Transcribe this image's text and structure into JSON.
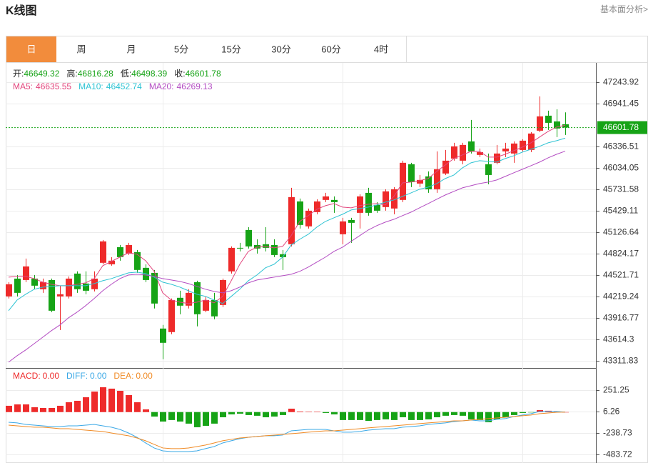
{
  "header": {
    "title": "K线图",
    "link": "基本面分析>"
  },
  "tabs": [
    "日",
    "周",
    "月",
    "5分",
    "15分",
    "30分",
    "60分",
    "4时"
  ],
  "active_tab": 0,
  "chart_data": [
    {
      "type": "candlestick",
      "ohlc_labels": {
        "open": "开:",
        "high": "高:",
        "low": "低:",
        "close": "收:"
      },
      "up_color": "#ee2a2a",
      "down_color": "#16a316",
      "open": [
        44220,
        44471,
        44451,
        44471,
        44321,
        44451,
        44220,
        44220,
        44542,
        44401,
        44321,
        44694,
        44673,
        44915,
        44825,
        44845,
        44623,
        44552,
        43766,
        43716,
        44200,
        44089,
        44421,
        44018,
        44169,
        44099,
        44573,
        44905,
        45157,
        44945,
        44956,
        44945,
        44815,
        44956,
        45560,
        45208,
        45409,
        45581,
        45581,
        45097,
        45298,
        45399,
        45681,
        45510,
        45480,
        45460,
        45581,
        46085,
        45812,
        45913,
        45732,
        45954,
        46165,
        46135,
        46407,
        46216,
        46085,
        46105,
        46266,
        46236,
        46286,
        46286,
        46558,
        46770,
        46689,
        46649.32
      ],
      "high": [
        44421,
        44522,
        44754,
        44522,
        44471,
        44471,
        44371,
        44502,
        44573,
        44573,
        44573,
        45016,
        44774,
        44945,
        44976,
        44875,
        44673,
        44593,
        43817,
        44190,
        44300,
        44321,
        44441,
        44220,
        44270,
        44471,
        44925,
        44976,
        45198,
        45026,
        45198,
        45026,
        44875,
        45752,
        45601,
        45460,
        45591,
        45681,
        45631,
        45329,
        45329,
        45661,
        45752,
        45550,
        45732,
        45762,
        46135,
        46105,
        45933,
        45984,
        46266,
        46286,
        46387,
        46387,
        46710,
        46306,
        46236,
        46357,
        46387,
        46407,
        46437,
        46538,
        47042,
        46841,
        46861,
        46816.28
      ],
      "low": [
        44190,
        44220,
        44421,
        44321,
        44270,
        43998,
        43746,
        44190,
        44270,
        44250,
        44290,
        44673,
        44653,
        44724,
        44804,
        44552,
        44421,
        44049,
        43333,
        43686,
        43968,
        44049,
        43797,
        43998,
        43897,
        44069,
        44542,
        44855,
        44895,
        44825,
        44855,
        44774,
        44593,
        44925,
        45177,
        45177,
        45379,
        45550,
        45399,
        44956,
        44976,
        45177,
        45359,
        45399,
        45429,
        45379,
        45550,
        45762,
        45762,
        45681,
        45681,
        45933,
        46135,
        46085,
        46236,
        46185,
        45802,
        46085,
        46185,
        46105,
        46266,
        46256,
        46538,
        46568,
        46468,
        46498.39
      ],
      "close": [
        44391,
        44270,
        44643,
        44371,
        44421,
        44018,
        44250,
        44471,
        44321,
        44300,
        44471,
        44996,
        44724,
        44774,
        44945,
        44593,
        44451,
        44119,
        43565,
        44169,
        44089,
        44270,
        43968,
        44169,
        43938,
        44451,
        44905,
        44895,
        44925,
        44895,
        44905,
        44804,
        44774,
        45621,
        45228,
        45429,
        45560,
        45631,
        45550,
        45278,
        45258,
        45631,
        45399,
        45429,
        45702,
        45732,
        46105,
        45833,
        45863,
        45732,
        46014,
        46135,
        46337,
        46357,
        46266,
        46256,
        45933,
        46236,
        46306,
        46377,
        46417,
        46518,
        46760,
        46669,
        46589,
        46601.78
      ],
      "series": [
        {
          "name": "MA5:",
          "color": "#e2457c",
          "values": [
            44492,
            44502,
            44502,
            44471,
            44421,
            44391,
            44371,
            44371,
            44391,
            44411,
            44471,
            44653,
            44714,
            44774,
            44835,
            44815,
            44724,
            44573,
            44270,
            44169,
            44139,
            44119,
            44139,
            44169,
            44129,
            44220,
            44441,
            44673,
            44855,
            44915,
            44925,
            44905,
            44925,
            45077,
            45278,
            45359,
            45450,
            45500,
            45530,
            45480,
            45470,
            45500,
            45520,
            45530,
            45510,
            45631,
            45823,
            45833,
            45853,
            45883,
            45984,
            46075,
            46165,
            46216,
            46266,
            46266,
            46185,
            46185,
            46226,
            46276,
            46326,
            46387,
            46468,
            46548,
            46609,
            46635.55
          ]
        },
        {
          "name": "MA10:",
          "color": "#2ec3d3",
          "values": [
            44018,
            44169,
            44250,
            44321,
            44351,
            44361,
            44371,
            44371,
            44371,
            44371,
            44401,
            44441,
            44471,
            44512,
            44552,
            44562,
            44542,
            44492,
            44421,
            44391,
            44351,
            44300,
            44250,
            44220,
            44169,
            44119,
            44220,
            44321,
            44441,
            44522,
            44623,
            44673,
            44774,
            44945,
            45026,
            45097,
            45198,
            45278,
            45329,
            45379,
            45439,
            45460,
            45480,
            45510,
            45550,
            45581,
            45631,
            45681,
            45732,
            45762,
            45812,
            45883,
            45933,
            46034,
            46105,
            46135,
            46125,
            46115,
            46165,
            46205,
            46256,
            46296,
            46337,
            46387,
            46417,
            46452.74
          ]
        },
        {
          "name": "MA20:",
          "color": "#b34cc2",
          "values": [
            43292,
            43383,
            43464,
            43554,
            43645,
            43736,
            43817,
            43918,
            43998,
            44089,
            44190,
            44300,
            44391,
            44471,
            44522,
            44532,
            44522,
            44502,
            44471,
            44451,
            44431,
            44401,
            44361,
            44321,
            44290,
            44270,
            44300,
            44351,
            44411,
            44451,
            44471,
            44492,
            44512,
            44532,
            44573,
            44633,
            44704,
            44774,
            44855,
            44915,
            44996,
            45077,
            45157,
            45218,
            45268,
            45308,
            45359,
            45409,
            45470,
            45530,
            45591,
            45651,
            45702,
            45752,
            45782,
            45812,
            45833,
            45863,
            45913,
            45964,
            46014,
            46064,
            46115,
            46175,
            46226,
            46269.13
          ]
        }
      ],
      "ylim": [
        43210,
        47515
      ],
      "yticks": [
        47243.92,
        46941.45,
        46336.51,
        46034.05,
        45731.58,
        45429.11,
        45126.64,
        44824.17,
        44521.71,
        44219.24,
        43916.77,
        43614.3,
        43311.83
      ],
      "grid": true
    },
    {
      "type": "macd",
      "name": "MACD:",
      "up_color": "#ee2a2a",
      "down_color": "#16a316",
      "values": [
        72,
        88,
        88,
        56,
        47,
        47,
        72,
        113,
        129,
        170,
        235,
        284,
        268,
        243,
        194,
        113,
        31,
        -51,
        -108,
        -91,
        -108,
        -132,
        -173,
        -157,
        -132,
        -59,
        -26,
        -18,
        -34,
        -42,
        -59,
        -51,
        -34,
        39,
        7,
        5,
        5,
        -10,
        -26,
        -91,
        -91,
        -91,
        -100,
        -91,
        -83,
        -91,
        -59,
        -91,
        -91,
        -83,
        -59,
        -42,
        -34,
        -42,
        -83,
        -91,
        -116,
        -83,
        -59,
        -34,
        -10,
        -2,
        23,
        15,
        7,
        0
      ],
      "value_labels": [
        null,
        null,
        null,
        null,
        null,
        null,
        null,
        null,
        null,
        null,
        null,
        null,
        null,
        null,
        null,
        null,
        null,
        null,
        null,
        null,
        null,
        null,
        null,
        null,
        null,
        null,
        null,
        null,
        null,
        null,
        null,
        null,
        null,
        null,
        null,
        null,
        null,
        null,
        null,
        null,
        null,
        null,
        null,
        null,
        null,
        null,
        null,
        null,
        null,
        null,
        null,
        null,
        null,
        null,
        null,
        null,
        null,
        null,
        null,
        null,
        null,
        null,
        null,
        null,
        null,
        "0.00"
      ],
      "series": [
        {
          "name": "DIFF:",
          "color": "#3aa8e6",
          "values": [
            -116,
            -124,
            -141,
            -149,
            -157,
            -165,
            -165,
            -157,
            -157,
            -149,
            -141,
            -157,
            -173,
            -198,
            -239,
            -288,
            -353,
            -410,
            -443,
            -451,
            -451,
            -451,
            -443,
            -418,
            -394,
            -353,
            -328,
            -304,
            -288,
            -279,
            -271,
            -271,
            -263,
            -214,
            -206,
            -198,
            -198,
            -198,
            -214,
            -230,
            -230,
            -222,
            -206,
            -198,
            -190,
            -190,
            -173,
            -165,
            -157,
            -141,
            -132,
            -124,
            -108,
            -100,
            -91,
            -100,
            -100,
            -83,
            -75,
            -51,
            -34,
            -18,
            7,
            7,
            7,
            0
          ],
          "value_labels": [
            null,
            null,
            null,
            null,
            null,
            null,
            null,
            null,
            null,
            null,
            null,
            null,
            null,
            null,
            null,
            null,
            null,
            null,
            null,
            null,
            null,
            null,
            null,
            null,
            null,
            null,
            null,
            null,
            null,
            null,
            null,
            null,
            null,
            null,
            null,
            null,
            null,
            null,
            null,
            null,
            null,
            null,
            null,
            null,
            null,
            null,
            null,
            null,
            null,
            null,
            null,
            null,
            null,
            null,
            null,
            null,
            null,
            null,
            null,
            null,
            null,
            null,
            null,
            null,
            null,
            "0.00"
          ]
        },
        {
          "name": "DEA:",
          "color": "#f08a24",
          "values": [
            -149,
            -157,
            -165,
            -173,
            -173,
            -181,
            -190,
            -190,
            -198,
            -206,
            -214,
            -222,
            -239,
            -255,
            -271,
            -296,
            -328,
            -369,
            -410,
            -418,
            -418,
            -410,
            -394,
            -377,
            -353,
            -328,
            -312,
            -296,
            -288,
            -279,
            -271,
            -263,
            -255,
            -247,
            -239,
            -230,
            -222,
            -214,
            -214,
            -206,
            -198,
            -190,
            -181,
            -173,
            -165,
            -157,
            -149,
            -141,
            -132,
            -124,
            -116,
            -108,
            -100,
            -100,
            -91,
            -83,
            -75,
            -67,
            -59,
            -51,
            -42,
            -34,
            -18,
            -10,
            -2,
            0
          ],
          "value_labels": [
            null,
            null,
            null,
            null,
            null,
            null,
            null,
            null,
            null,
            null,
            null,
            null,
            null,
            null,
            null,
            null,
            null,
            null,
            null,
            null,
            null,
            null,
            null,
            null,
            null,
            null,
            null,
            null,
            null,
            null,
            null,
            null,
            null,
            null,
            null,
            null,
            null,
            null,
            null,
            null,
            null,
            null,
            null,
            null,
            null,
            null,
            null,
            null,
            null,
            null,
            null,
            null,
            null,
            null,
            null,
            null,
            null,
            null,
            null,
            null,
            null,
            null,
            null,
            null,
            null,
            "0.00"
          ]
        }
      ],
      "ylim": [
        -582,
        488
      ],
      "yticks": [
        251.25,
        6.26,
        -238.73,
        -483.72
      ],
      "grid": true
    }
  ]
}
